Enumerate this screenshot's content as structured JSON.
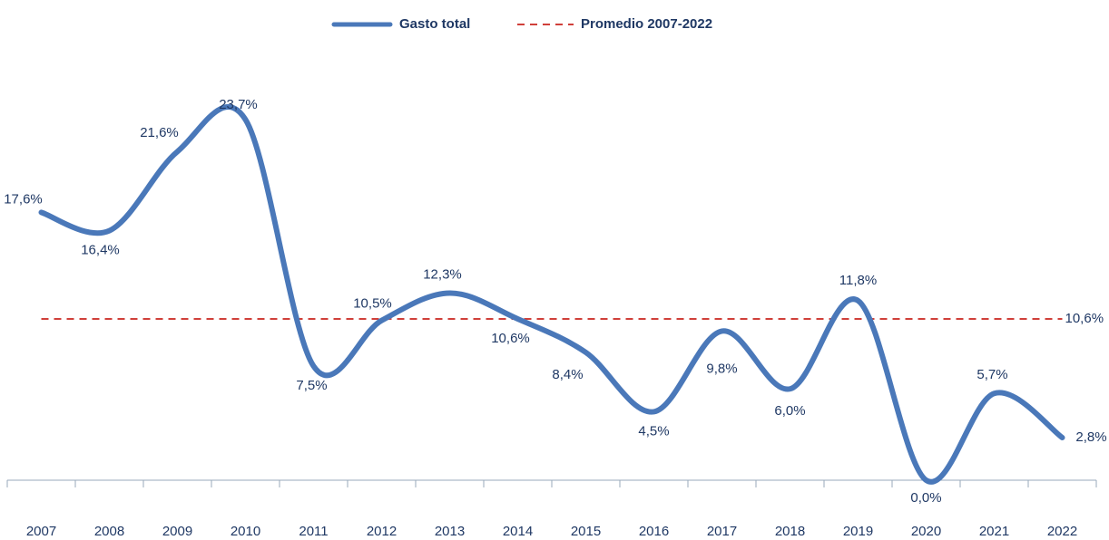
{
  "chart_data": {
    "type": "line",
    "categories": [
      "2007",
      "2008",
      "2009",
      "2010",
      "2011",
      "2012",
      "2013",
      "2014",
      "2015",
      "2016",
      "2017",
      "2018",
      "2019",
      "2020",
      "2021",
      "2022"
    ],
    "series": [
      {
        "name": "Gasto total",
        "color": "#4a78b9",
        "values": [
          17.6,
          16.4,
          21.6,
          23.7,
          7.5,
          10.5,
          12.3,
          10.6,
          8.4,
          4.5,
          9.8,
          6.0,
          11.8,
          0.0,
          5.7,
          2.8
        ],
        "value_labels": [
          "17,6%",
          "16,4%",
          "21,6%",
          "23,7%",
          "7,5%",
          "10,5%",
          "12,3%",
          "10,6%",
          "8,4%",
          "4,5%",
          "9,8%",
          "6,0%",
          "11,8%",
          "0,0%",
          "5,7%",
          "2,8%"
        ]
      }
    ],
    "average": {
      "name": "Promedio 2007-2022",
      "color": "#d0403a",
      "value": 10.6,
      "value_label": "10,6%"
    }
  }
}
